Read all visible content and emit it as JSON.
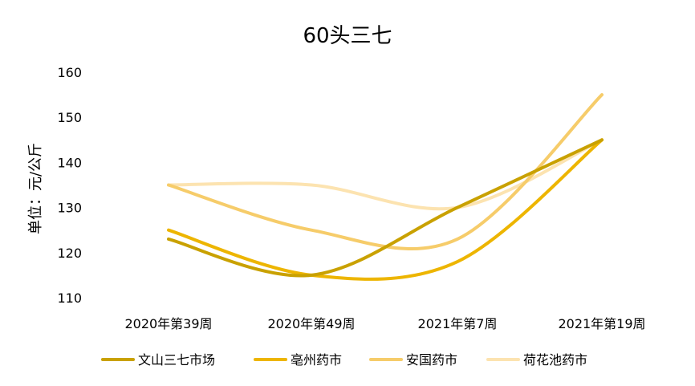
{
  "chart_data": {
    "type": "line",
    "title": "60头三七",
    "ylabel": "单位：元/公斤",
    "xlabel": "",
    "categories": [
      "2020年第39周",
      "2020年第49周",
      "2021年第7周",
      "2021年第19周"
    ],
    "ylim": [
      110,
      160
    ],
    "yticks": [
      110,
      120,
      130,
      140,
      150,
      160
    ],
    "grid": false,
    "smooth": true,
    "legend_position": "bottom",
    "series": [
      {
        "name": "文山三七市场",
        "values": [
          123,
          115,
          130,
          145
        ],
        "color": "#C9A100"
      },
      {
        "name": "亳州药市",
        "values": [
          125,
          115,
          118,
          145
        ],
        "color": "#EDB500"
      },
      {
        "name": "安国药市",
        "values": [
          135,
          125,
          123,
          155
        ],
        "color": "#F6CC6A"
      },
      {
        "name": "荷花池药市",
        "values": [
          135,
          135,
          130,
          145
        ],
        "color": "#FCE3B0"
      }
    ]
  }
}
